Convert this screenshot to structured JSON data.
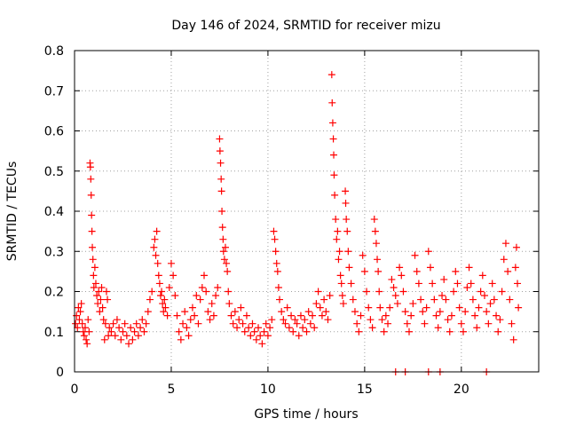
{
  "chart_data": {
    "type": "scatter",
    "title": "Day 146 of 2024, SRMTID for receiver mizu",
    "xlabel": "GPS time / hours",
    "ylabel": "SRMTID / TECUs",
    "xlim": [
      0,
      24
    ],
    "ylim": [
      0,
      0.8
    ],
    "xticks": [
      0,
      5,
      10,
      15,
      20
    ],
    "xtick_labels": [
      "0",
      "5",
      "10",
      "15",
      "20"
    ],
    "yticks": [
      0,
      0.1,
      0.2,
      0.3,
      0.4,
      0.5,
      0.6,
      0.7,
      0.8
    ],
    "ytick_labels": [
      "0",
      "0.1",
      "0.2",
      "0.3",
      "0.4",
      "0.5",
      "0.6",
      "0.7",
      "0.8"
    ],
    "grid": true,
    "marker": "plus",
    "series_color": "#ff0000",
    "grid_color": "#a0a0a0",
    "series": [
      {
        "name": "SRMTID",
        "points": [
          [
            0.05,
            0.12
          ],
          [
            0.1,
            0.14
          ],
          [
            0.15,
            0.11
          ],
          [
            0.2,
            0.16
          ],
          [
            0.25,
            0.13
          ],
          [
            0.3,
            0.15
          ],
          [
            0.35,
            0.17
          ],
          [
            0.4,
            0.12
          ],
          [
            0.45,
            0.1
          ],
          [
            0.5,
            0.09
          ],
          [
            0.55,
            0.11
          ],
          [
            0.6,
            0.08
          ],
          [
            0.65,
            0.07
          ],
          [
            0.7,
            0.13
          ],
          [
            0.75,
            0.1
          ],
          [
            0.8,
            0.52
          ],
          [
            0.82,
            0.51
          ],
          [
            0.84,
            0.48
          ],
          [
            0.86,
            0.44
          ],
          [
            0.88,
            0.39
          ],
          [
            0.9,
            0.35
          ],
          [
            0.92,
            0.31
          ],
          [
            0.95,
            0.28
          ],
          [
            0.98,
            0.24
          ],
          [
            1.0,
            0.21
          ],
          [
            1.05,
            0.26
          ],
          [
            1.1,
            0.22
          ],
          [
            1.15,
            0.19
          ],
          [
            1.2,
            0.17
          ],
          [
            1.25,
            0.2
          ],
          [
            1.3,
            0.15
          ],
          [
            1.35,
            0.18
          ],
          [
            1.4,
            0.21
          ],
          [
            1.45,
            0.16
          ],
          [
            1.5,
            0.13
          ],
          [
            1.55,
            0.08
          ],
          [
            1.6,
            0.12
          ],
          [
            1.65,
            0.2
          ],
          [
            1.7,
            0.18
          ],
          [
            1.75,
            0.09
          ],
          [
            1.8,
            0.11
          ],
          [
            1.9,
            0.1
          ],
          [
            2.0,
            0.12
          ],
          [
            2.1,
            0.09
          ],
          [
            2.2,
            0.13
          ],
          [
            2.3,
            0.11
          ],
          [
            2.4,
            0.08
          ],
          [
            2.5,
            0.1
          ],
          [
            2.6,
            0.12
          ],
          [
            2.7,
            0.09
          ],
          [
            2.8,
            0.07
          ],
          [
            2.9,
            0.11
          ],
          [
            3.0,
            0.08
          ],
          [
            3.1,
            0.1
          ],
          [
            3.2,
            0.12
          ],
          [
            3.3,
            0.09
          ],
          [
            3.4,
            0.11
          ],
          [
            3.5,
            0.13
          ],
          [
            3.6,
            0.1
          ],
          [
            3.7,
            0.12
          ],
          [
            3.8,
            0.15
          ],
          [
            3.9,
            0.18
          ],
          [
            4.0,
            0.2
          ],
          [
            4.1,
            0.31
          ],
          [
            4.15,
            0.33
          ],
          [
            4.2,
            0.29
          ],
          [
            4.25,
            0.35
          ],
          [
            4.3,
            0.27
          ],
          [
            4.35,
            0.24
          ],
          [
            4.4,
            0.22
          ],
          [
            4.45,
            0.19
          ],
          [
            4.5,
            0.2
          ],
          [
            4.55,
            0.17
          ],
          [
            4.6,
            0.15
          ],
          [
            4.65,
            0.18
          ],
          [
            4.7,
            0.16
          ],
          [
            4.8,
            0.14
          ],
          [
            4.9,
            0.21
          ],
          [
            5.0,
            0.27
          ],
          [
            5.1,
            0.24
          ],
          [
            5.2,
            0.19
          ],
          [
            5.3,
            0.14
          ],
          [
            5.4,
            0.1
          ],
          [
            5.5,
            0.08
          ],
          [
            5.6,
            0.12
          ],
          [
            5.7,
            0.15
          ],
          [
            5.8,
            0.11
          ],
          [
            5.9,
            0.09
          ],
          [
            6.0,
            0.13
          ],
          [
            6.1,
            0.16
          ],
          [
            6.2,
            0.14
          ],
          [
            6.3,
            0.19
          ],
          [
            6.4,
            0.12
          ],
          [
            6.5,
            0.18
          ],
          [
            6.6,
            0.21
          ],
          [
            6.7,
            0.24
          ],
          [
            6.8,
            0.2
          ],
          [
            6.9,
            0.15
          ],
          [
            7.0,
            0.13
          ],
          [
            7.1,
            0.17
          ],
          [
            7.2,
            0.14
          ],
          [
            7.3,
            0.19
          ],
          [
            7.4,
            0.21
          ],
          [
            7.5,
            0.58
          ],
          [
            7.52,
            0.55
          ],
          [
            7.55,
            0.52
          ],
          [
            7.58,
            0.48
          ],
          [
            7.6,
            0.45
          ],
          [
            7.62,
            0.4
          ],
          [
            7.65,
            0.36
          ],
          [
            7.68,
            0.33
          ],
          [
            7.7,
            0.3
          ],
          [
            7.75,
            0.28
          ],
          [
            7.8,
            0.31
          ],
          [
            7.85,
            0.27
          ],
          [
            7.9,
            0.25
          ],
          [
            7.95,
            0.2
          ],
          [
            8.0,
            0.17
          ],
          [
            8.1,
            0.14
          ],
          [
            8.2,
            0.12
          ],
          [
            8.3,
            0.15
          ],
          [
            8.4,
            0.11
          ],
          [
            8.5,
            0.13
          ],
          [
            8.6,
            0.16
          ],
          [
            8.7,
            0.12
          ],
          [
            8.8,
            0.1
          ],
          [
            8.9,
            0.14
          ],
          [
            9.0,
            0.11
          ],
          [
            9.1,
            0.09
          ],
          [
            9.2,
            0.12
          ],
          [
            9.3,
            0.1
          ],
          [
            9.4,
            0.08
          ],
          [
            9.5,
            0.11
          ],
          [
            9.6,
            0.09
          ],
          [
            9.7,
            0.07
          ],
          [
            9.8,
            0.1
          ],
          [
            9.9,
            0.12
          ],
          [
            10.0,
            0.09
          ],
          [
            10.1,
            0.11
          ],
          [
            10.2,
            0.13
          ],
          [
            10.3,
            0.35
          ],
          [
            10.35,
            0.33
          ],
          [
            10.4,
            0.3
          ],
          [
            10.45,
            0.27
          ],
          [
            10.5,
            0.25
          ],
          [
            10.55,
            0.21
          ],
          [
            10.6,
            0.18
          ],
          [
            10.7,
            0.15
          ],
          [
            10.8,
            0.13
          ],
          [
            10.9,
            0.12
          ],
          [
            11.0,
            0.16
          ],
          [
            11.1,
            0.11
          ],
          [
            11.2,
            0.14
          ],
          [
            11.3,
            0.1
          ],
          [
            11.4,
            0.13
          ],
          [
            11.5,
            0.12
          ],
          [
            11.6,
            0.09
          ],
          [
            11.7,
            0.14
          ],
          [
            11.8,
            0.11
          ],
          [
            11.9,
            0.13
          ],
          [
            12.0,
            0.1
          ],
          [
            12.1,
            0.15
          ],
          [
            12.2,
            0.12
          ],
          [
            12.3,
            0.14
          ],
          [
            12.4,
            0.11
          ],
          [
            12.5,
            0.17
          ],
          [
            12.6,
            0.2
          ],
          [
            12.7,
            0.16
          ],
          [
            12.8,
            0.14
          ],
          [
            12.9,
            0.18
          ],
          [
            13.0,
            0.15
          ],
          [
            13.1,
            0.13
          ],
          [
            13.2,
            0.19
          ],
          [
            13.3,
            0.74
          ],
          [
            13.32,
            0.67
          ],
          [
            13.35,
            0.62
          ],
          [
            13.38,
            0.58
          ],
          [
            13.4,
            0.54
          ],
          [
            13.42,
            0.49
          ],
          [
            13.45,
            0.44
          ],
          [
            13.5,
            0.38
          ],
          [
            13.55,
            0.33
          ],
          [
            13.6,
            0.35
          ],
          [
            13.65,
            0.28
          ],
          [
            13.7,
            0.3
          ],
          [
            13.75,
            0.24
          ],
          [
            13.8,
            0.22
          ],
          [
            13.85,
            0.19
          ],
          [
            13.9,
            0.17
          ],
          [
            14.0,
            0.45
          ],
          [
            14.02,
            0.42
          ],
          [
            14.05,
            0.38
          ],
          [
            14.1,
            0.35
          ],
          [
            14.15,
            0.3
          ],
          [
            14.2,
            0.26
          ],
          [
            14.3,
            0.22
          ],
          [
            14.4,
            0.18
          ],
          [
            14.5,
            0.15
          ],
          [
            14.6,
            0.12
          ],
          [
            14.7,
            0.1
          ],
          [
            14.8,
            0.14
          ],
          [
            14.9,
            0.29
          ],
          [
            15.0,
            0.25
          ],
          [
            15.1,
            0.2
          ],
          [
            15.2,
            0.16
          ],
          [
            15.3,
            0.13
          ],
          [
            15.4,
            0.11
          ],
          [
            15.5,
            0.38
          ],
          [
            15.55,
            0.35
          ],
          [
            15.6,
            0.32
          ],
          [
            15.65,
            0.28
          ],
          [
            15.7,
            0.25
          ],
          [
            15.75,
            0.2
          ],
          [
            15.8,
            0.16
          ],
          [
            15.9,
            0.13
          ],
          [
            16.0,
            0.1
          ],
          [
            16.1,
            0.14
          ],
          [
            16.2,
            0.12
          ],
          [
            16.3,
            0.16
          ],
          [
            16.4,
            0.23
          ],
          [
            16.5,
            0.21
          ],
          [
            16.6,
            0.19
          ],
          [
            16.7,
            0.17
          ],
          [
            16.8,
            0.26
          ],
          [
            16.9,
            0.24
          ],
          [
            17.0,
            0.2
          ],
          [
            17.1,
            0.15
          ],
          [
            17.2,
            0.12
          ],
          [
            17.3,
            0.1
          ],
          [
            17.4,
            0.14
          ],
          [
            17.5,
            0.17
          ],
          [
            17.6,
            0.29
          ],
          [
            17.7,
            0.25
          ],
          [
            17.8,
            0.22
          ],
          [
            17.9,
            0.18
          ],
          [
            18.0,
            0.15
          ],
          [
            18.1,
            0.12
          ],
          [
            18.2,
            0.16
          ],
          [
            18.3,
            0.3
          ],
          [
            18.4,
            0.26
          ],
          [
            18.5,
            0.22
          ],
          [
            18.6,
            0.18
          ],
          [
            18.7,
            0.14
          ],
          [
            18.8,
            0.11
          ],
          [
            18.9,
            0.15
          ],
          [
            19.0,
            0.19
          ],
          [
            19.1,
            0.23
          ],
          [
            19.2,
            0.18
          ],
          [
            19.3,
            0.13
          ],
          [
            19.4,
            0.1
          ],
          [
            19.5,
            0.14
          ],
          [
            19.6,
            0.2
          ],
          [
            19.7,
            0.25
          ],
          [
            19.8,
            0.22
          ],
          [
            19.9,
            0.16
          ],
          [
            20.0,
            0.12
          ],
          [
            20.1,
            0.1
          ],
          [
            20.2,
            0.15
          ],
          [
            20.3,
            0.21
          ],
          [
            20.4,
            0.26
          ],
          [
            20.5,
            0.22
          ],
          [
            20.6,
            0.18
          ],
          [
            20.7,
            0.14
          ],
          [
            20.8,
            0.11
          ],
          [
            20.9,
            0.16
          ],
          [
            21.0,
            0.2
          ],
          [
            21.1,
            0.24
          ],
          [
            21.2,
            0.19
          ],
          [
            21.3,
            0.15
          ],
          [
            21.4,
            0.12
          ],
          [
            21.5,
            0.17
          ],
          [
            21.6,
            0.22
          ],
          [
            21.7,
            0.18
          ],
          [
            21.8,
            0.14
          ],
          [
            21.9,
            0.1
          ],
          [
            22.0,
            0.13
          ],
          [
            22.1,
            0.2
          ],
          [
            22.2,
            0.28
          ],
          [
            22.3,
            0.32
          ],
          [
            22.4,
            0.25
          ],
          [
            22.5,
            0.18
          ],
          [
            22.6,
            0.12
          ],
          [
            22.7,
            0.08
          ],
          [
            22.8,
            0.26
          ],
          [
            22.85,
            0.31
          ],
          [
            22.9,
            0.22
          ],
          [
            22.95,
            0.16
          ]
        ]
      },
      {
        "name": "Zero-value markers",
        "points": [
          [
            16.6,
            0
          ],
          [
            17.1,
            0
          ],
          [
            18.3,
            0
          ],
          [
            18.9,
            0
          ],
          [
            21.3,
            0
          ]
        ]
      }
    ]
  }
}
